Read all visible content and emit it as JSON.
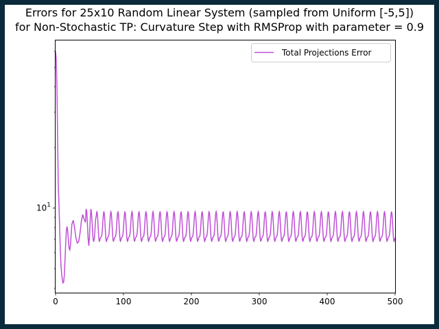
{
  "chart_data": {
    "type": "line",
    "title_line1": "Errors for 25x10 Random Linear System (sampled from Uniform [-5,5])",
    "title_line2": "for Non-Stochastic TP: Curvature Step with RMSProp with parameter = 0.9",
    "xlabel": "",
    "ylabel": "",
    "xlim": [
      0,
      500
    ],
    "ylim": [
      3.8,
      68
    ],
    "yscale": "log",
    "x_ticks": [
      0,
      100,
      200,
      300,
      400,
      500
    ],
    "x_tick_labels": [
      "0",
      "100",
      "200",
      "300",
      "400",
      "500"
    ],
    "y_major_ticks": [
      10
    ],
    "y_major_tick_labels": [
      "10^1"
    ],
    "y_minor_ticks": [
      4,
      5,
      6,
      7,
      8,
      9,
      20,
      30,
      40,
      50,
      60
    ],
    "legend_placement": "upper right",
    "series": [
      {
        "name": "Total Projections Error",
        "color": "#bf4fd6",
        "x": [
          0,
          1,
          2,
          3,
          4,
          5,
          6,
          7,
          8,
          9,
          10,
          11,
          12,
          13,
          14,
          15,
          16,
          17,
          18,
          19,
          20,
          21,
          22,
          23,
          24,
          26,
          28,
          30,
          32,
          34,
          36,
          38,
          40,
          42,
          44,
          45,
          46,
          47,
          48,
          49,
          50,
          51,
          52,
          53,
          54,
          55,
          56,
          57,
          58,
          59,
          60
        ],
        "y": [
          60,
          55,
          40,
          22,
          13,
          10.5,
          8,
          6.2,
          5.2,
          4.7,
          4.4,
          4.25,
          4.3,
          4.7,
          5.6,
          6.8,
          7.8,
          8.1,
          7.6,
          6.8,
          6.3,
          6.2,
          6.6,
          7.4,
          8.3,
          8.7,
          8.0,
          7.1,
          6.7,
          6.8,
          7.5,
          8.6,
          9.3,
          8.8,
          8.5,
          9.9,
          9.6,
          8.2,
          7.0,
          6.5,
          7.3,
          8.7,
          9.9,
          9.4,
          8.3,
          7.2,
          6.8,
          7.0,
          7.8,
          8.8,
          9.2
        ]
      }
    ]
  }
}
